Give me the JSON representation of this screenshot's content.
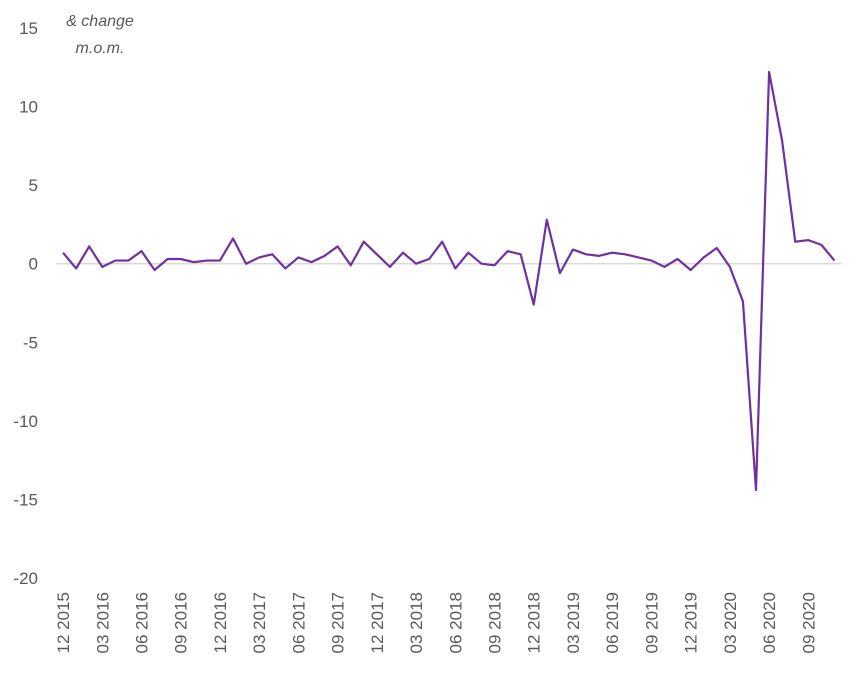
{
  "chart_data": {
    "type": "line",
    "ylabel_lines": [
      "& change",
      "m.o.m."
    ],
    "categories": [
      "12 2015",
      null,
      null,
      "03 2016",
      null,
      null,
      "06 2016",
      null,
      null,
      "09 2016",
      null,
      null,
      "12 2016",
      null,
      null,
      "03 2017",
      null,
      null,
      "06 2017",
      null,
      null,
      "09 2017",
      null,
      null,
      "12 2017",
      null,
      null,
      "03 2018",
      null,
      null,
      "06 2018",
      null,
      null,
      "09 2018",
      null,
      null,
      "12 2018",
      null,
      null,
      "03 2019",
      null,
      null,
      "06 2019",
      null,
      null,
      "09 2019",
      null,
      null,
      "12 2019",
      null,
      null,
      "03 2020",
      null,
      null,
      "06 2020",
      null,
      null,
      "09 2020",
      null,
      null
    ],
    "series": [
      {
        "name": "m.o.m.",
        "color": "#7030a0",
        "values": [
          0.7,
          -0.3,
          1.1,
          -0.2,
          0.2,
          0.2,
          0.8,
          -0.4,
          0.3,
          0.3,
          0.1,
          0.2,
          0.2,
          1.6,
          0.0,
          0.4,
          0.6,
          -0.3,
          0.4,
          0.1,
          0.5,
          1.1,
          -0.1,
          1.4,
          0.6,
          -0.2,
          0.7,
          0.0,
          0.3,
          1.4,
          -0.3,
          0.7,
          0.0,
          -0.1,
          0.8,
          0.6,
          -2.6,
          2.8,
          -0.6,
          0.9,
          0.6,
          0.5,
          0.7,
          0.6,
          0.4,
          0.2,
          -0.2,
          0.3,
          -0.4,
          0.4,
          1.0,
          -0.2,
          -2.4,
          -14.4,
          12.2,
          7.8,
          1.4,
          1.5,
          1.2,
          0.2
        ]
      }
    ],
    "ylim": [
      -20,
      15
    ],
    "yticks": [
      -20,
      -15,
      -10,
      -5,
      0,
      5,
      10,
      15
    ],
    "grid": false
  }
}
